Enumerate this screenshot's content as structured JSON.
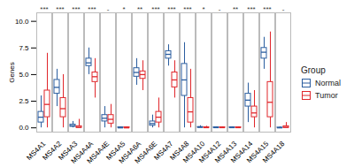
{
  "chart_data": {
    "type": "boxplot",
    "y_label": "Genes",
    "categories": [
      "MS4A1",
      "MS4A2",
      "MS4A3",
      "MS4A4A",
      "MS4A4E",
      "MS4A5",
      "MS4A6A",
      "MS4A6E",
      "MS4A7",
      "MS4A8",
      "MS4A10",
      "MS4A12",
      "MS4A13",
      "MS4A14",
      "MS4A15",
      "MS4A18"
    ],
    "annotations": [
      "***",
      "***",
      "***",
      "***",
      "-",
      "*",
      "**",
      "***",
      "***",
      "***",
      "*",
      "-",
      "**",
      "***",
      "***",
      "-"
    ],
    "series": [
      {
        "name": "Normal",
        "color": "#2a5d9f",
        "min": [
          0,
          2,
          0,
          5,
          0,
          0,
          4,
          0,
          5.8,
          0,
          0,
          0,
          0,
          0.5,
          5.5,
          0
        ],
        "q1": [
          0.5,
          3.2,
          0.1,
          5.8,
          0.6,
          0,
          4.8,
          0.2,
          6.5,
          3,
          0.02,
          0,
          0,
          2,
          6.5,
          0
        ],
        "median": [
          1.0,
          3.8,
          0.2,
          6.1,
          0.9,
          0,
          5.2,
          0.4,
          6.9,
          4.5,
          0.05,
          0.02,
          0.02,
          2.6,
          7.1,
          0
        ],
        "q3": [
          1.5,
          4.5,
          0.3,
          6.5,
          1.2,
          0.05,
          5.6,
          0.6,
          7.2,
          6,
          0.08,
          0.05,
          0.05,
          3.2,
          7.5,
          0.03
        ],
        "max": [
          3,
          5.5,
          0.6,
          7.5,
          2,
          0.1,
          6.5,
          1.2,
          7.8,
          8,
          0.2,
          0.1,
          0.1,
          4.2,
          8.5,
          0.1
        ]
      },
      {
        "name": "Tumor",
        "color": "#e0262b",
        "min": [
          0,
          0,
          0,
          2.8,
          0,
          0,
          3.5,
          0,
          2.8,
          0,
          0,
          0,
          0,
          0,
          0,
          0
        ],
        "q1": [
          1,
          1,
          0,
          4.3,
          0.4,
          0,
          4.6,
          0.5,
          3.8,
          0.5,
          0,
          0,
          0,
          1,
          1,
          0
        ],
        "median": [
          2.2,
          1.8,
          0.05,
          4.8,
          0.8,
          0,
          5.0,
          1.0,
          4.5,
          1.5,
          0.02,
          0.02,
          0.02,
          1.4,
          2.4,
          0.05
        ],
        "q3": [
          3.5,
          2.8,
          0.15,
          5.2,
          1.2,
          0.05,
          5.3,
          1.5,
          5.2,
          2.8,
          0.05,
          0.05,
          0.05,
          2,
          4.3,
          0.15
        ],
        "max": [
          7,
          5,
          0.8,
          6.5,
          2.2,
          0.1,
          6.3,
          2.8,
          6.3,
          5.5,
          0.15,
          0.1,
          0.1,
          3.5,
          9,
          0.5
        ]
      }
    ],
    "ylim": [
      -0.4,
      10.8
    ],
    "yticks": [
      {
        "value": 0,
        "label": "0.0"
      },
      {
        "value": 2.5,
        "label": "2.5"
      },
      {
        "value": 5,
        "label": "5.0"
      },
      {
        "value": 7.5,
        "label": "7.5"
      },
      {
        "value": 10,
        "label": "10.0"
      }
    ],
    "legend": "right",
    "legend_title": "Group"
  }
}
